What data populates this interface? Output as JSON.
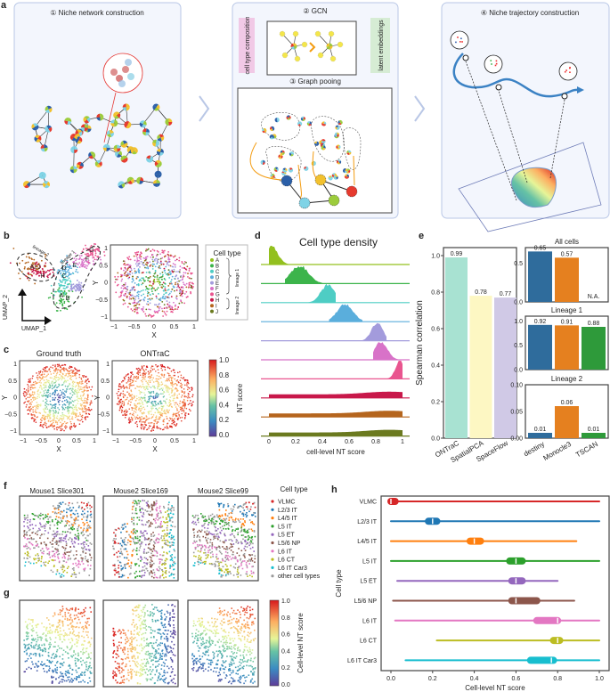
{
  "panel_labels": {
    "a": "a",
    "b": "b",
    "c": "c",
    "d": "d",
    "e": "e",
    "f": "f",
    "g": "g",
    "h": "h"
  },
  "panel_a": {
    "step1_title": "① Niche network construction",
    "step2_title": "② GCN",
    "step2_left_label": "cell type composition",
    "step2_right_label": "latent embeddings",
    "step3_title": "③ Graph pooing",
    "step4_title": "④ Niche trajectory construction"
  },
  "panel_b": {
    "umap_x": "UMAP_1",
    "umap_y": "UMAP_2",
    "lineage1": "lineage 1",
    "lineage2": "lineage 2",
    "cluster_labels": [
      "A",
      "B",
      "C",
      "D",
      "E",
      "F",
      "G",
      "H",
      "I",
      "J"
    ],
    "xlabel": "X",
    "ylabel": "Y",
    "legend_title": "Cell type",
    "legend_items": [
      {
        "label": "A",
        "color": "#93c01f"
      },
      {
        "label": "B",
        "color": "#3cb44b"
      },
      {
        "label": "C",
        "color": "#4ecdc4"
      },
      {
        "label": "D",
        "color": "#5aaedc"
      },
      {
        "label": "E",
        "color": "#a39bdc"
      },
      {
        "label": "F",
        "color": "#d872c8"
      },
      {
        "label": "G",
        "color": "#e9558f"
      },
      {
        "label": "H",
        "color": "#c8184a"
      },
      {
        "label": "I",
        "color": "#b5651d"
      },
      {
        "label": "J",
        "color": "#6b7a1f"
      }
    ],
    "legend_bracket1": "lineage 1",
    "legend_bracket2": "lineage 2",
    "ticks": [
      "−1",
      "−0.5",
      "0",
      "0.5",
      "1"
    ]
  },
  "panel_c": {
    "title_left": "Ground truth",
    "title_right": "ONTraC",
    "xlabel": "X",
    "ylabel": "Y",
    "colorbar_label": "NT score",
    "colorbar_ticks": [
      "1.0",
      "0.8",
      "0.6",
      "0.4",
      "0.2",
      "0.0"
    ]
  },
  "panel_f": {
    "titles": [
      "Mouse1 Slice301",
      "Mouse2 Slice169",
      "Mouse2 Slice99"
    ],
    "legend_title": "Cell type",
    "legend_items": [
      {
        "label": "VLMC",
        "color": "#d62728"
      },
      {
        "label": "L2/3 IT",
        "color": "#1f77b4"
      },
      {
        "label": "L4/5 IT",
        "color": "#ff7f0e"
      },
      {
        "label": "L5 IT",
        "color": "#2ca02c"
      },
      {
        "label": "L5 ET",
        "color": "#9467bd"
      },
      {
        "label": "L5/6 NP",
        "color": "#8c564b"
      },
      {
        "label": "L6 IT",
        "color": "#e377c2"
      },
      {
        "label": "L6 CT",
        "color": "#bcbd22"
      },
      {
        "label": "L6 IT Car3",
        "color": "#17becf"
      },
      {
        "label": "other cell types",
        "color": "#9a9a9a"
      }
    ]
  },
  "panel_g": {
    "colorbar_label": "Cell-level NT score",
    "colorbar_ticks": [
      "1.0",
      "0.8",
      "0.6",
      "0.4",
      "0.2",
      "0.0"
    ]
  },
  "chart_data": [
    {
      "id": "d",
      "type": "area",
      "title": "Cell type density",
      "xlabel": "cell-level NT score",
      "xlim": [
        0,
        1
      ],
      "xticks": [
        "0",
        "0.2",
        "0.4",
        "0.6",
        "0.8",
        "1"
      ],
      "series": [
        {
          "range": [
            0,
            0.2
          ],
          "peak": 0.02,
          "color": "#93c01f"
        },
        {
          "range": [
            0.12,
            0.4
          ],
          "peak": 0.23,
          "color": "#3cb44b"
        },
        {
          "range": [
            0.28,
            0.5
          ],
          "peak": 0.44,
          "color": "#4ecdc4"
        },
        {
          "range": [
            0.45,
            0.7
          ],
          "peak": 0.57,
          "color": "#5aaedc"
        },
        {
          "range": [
            0.7,
            0.88
          ],
          "peak": 0.81,
          "color": "#a39bdc"
        },
        {
          "range": [
            0.78,
            0.98
          ],
          "peak": 0.84,
          "color": "#d872c8"
        },
        {
          "range": [
            0.86,
            1.0
          ],
          "peak": 0.98,
          "color": "#e9558f"
        },
        {
          "range": [
            0,
            1.0
          ],
          "peak": 0.9,
          "color": "#c8184a"
        },
        {
          "range": [
            0,
            1.0
          ],
          "peak": 0.9,
          "color": "#b5651d"
        },
        {
          "range": [
            0,
            1.0
          ],
          "peak": 0.9,
          "color": "#6b7a1f"
        }
      ]
    },
    {
      "id": "e-main",
      "type": "bar",
      "ylabel": "Spearman correlation",
      "ylim": [
        0,
        1.0
      ],
      "yticks": [
        "0.0",
        "0.2",
        "0.4",
        "0.6",
        "0.8",
        "1.0"
      ],
      "categories": [
        "ONTraC",
        "SpatialPCA",
        "SpaceFlow"
      ],
      "values": [
        0.99,
        0.78,
        0.77
      ],
      "value_labels": [
        "0.99",
        "0.78",
        "0.77"
      ],
      "colors": [
        "#a8e2d2",
        "#fdf7c3",
        "#d0c9e6"
      ]
    },
    {
      "id": "e-small",
      "type": "bar",
      "categories": [
        "destiny",
        "Monocle3",
        "TSCAN"
      ],
      "colors": [
        "#2f6c9c",
        "#e5801f",
        "#2e9a3a"
      ],
      "panels": [
        {
          "title": "All cells",
          "ylim": [
            0,
            0.7
          ],
          "yticks": [
            "0.0",
            "0.5"
          ],
          "values": [
            0.65,
            0.57,
            null
          ],
          "value_labels": [
            "0.65",
            "0.57",
            "N.A."
          ]
        },
        {
          "title": "Lineage 1",
          "ylim": [
            0,
            1.1
          ],
          "yticks": [
            "0.0",
            "0.5",
            "1.0"
          ],
          "values": [
            0.92,
            0.91,
            0.88
          ],
          "value_labels": [
            "0.92",
            "0.91",
            "0.88"
          ]
        },
        {
          "title": "Lineage 2",
          "ylim": [
            0,
            0.1
          ],
          "yticks": [
            "0.00",
            "0.05",
            "0.10"
          ],
          "values": [
            0.01,
            0.06,
            0.01
          ],
          "value_labels": [
            "0.01",
            "0.06",
            "0.01"
          ]
        }
      ]
    },
    {
      "id": "h",
      "type": "violin",
      "xlabel": "Cell-level NT score",
      "ylabel": "Cell type",
      "xlim": [
        0,
        1
      ],
      "xticks": [
        "0.0",
        "0.2",
        "0.4",
        "0.6",
        "0.8",
        "1.0"
      ],
      "categories": [
        "VLMC",
        "L2/3 IT",
        "L4/5 IT",
        "L5 IT",
        "L5 ET",
        "L5/6 NP",
        "L6 IT",
        "L6 CT",
        "L6 IT Car3"
      ],
      "medians": [
        0.0,
        0.2,
        0.4,
        0.6,
        0.6,
        0.6,
        0.8,
        0.8,
        0.77
      ],
      "iqr": [
        [
          0,
          0.02
        ],
        [
          0.18,
          0.22
        ],
        [
          0.38,
          0.43
        ],
        [
          0.57,
          0.63
        ],
        [
          0.58,
          0.63
        ],
        [
          0.58,
          0.7
        ],
        [
          0.7,
          0.8
        ],
        [
          0.78,
          0.81
        ],
        [
          0.67,
          0.78
        ]
      ],
      "range": [
        [
          0,
          1.0
        ],
        [
          0,
          1.0
        ],
        [
          0,
          0.89
        ],
        [
          0,
          1.0
        ],
        [
          0.03,
          0.8
        ],
        [
          0.01,
          0.88
        ],
        [
          0.02,
          1.0
        ],
        [
          0.22,
          1.0
        ],
        [
          0.07,
          1.0
        ]
      ],
      "colors": [
        "#d62728",
        "#1f77b4",
        "#ff7f0e",
        "#2ca02c",
        "#9467bd",
        "#8c564b",
        "#e377c2",
        "#bcbd22",
        "#17becf"
      ]
    }
  ]
}
